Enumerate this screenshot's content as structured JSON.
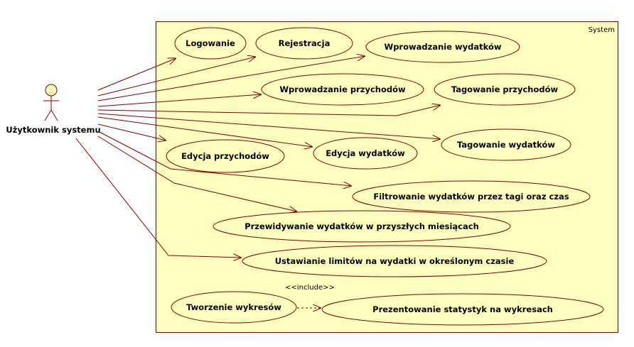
{
  "system": {
    "label": "System"
  },
  "actor": {
    "name": "Użytkownik systemu"
  },
  "use_cases": {
    "logowanie": "Logowanie",
    "rejestracja": "Rejestracja",
    "wprowadzanie_wydatkow": "Wprowadzanie wydatków",
    "wprowadzanie_przychodow": "Wprowadzanie przychodów",
    "tagowanie_przychodow": "Tagowanie przychodów",
    "edycja_przychodow": "Edycja przychodów",
    "edycja_wydatkow": "Edycja wydatków",
    "tagowanie_wydatkow": "Tagowanie wydatków",
    "filtrowanie": "Filtrowanie wydatków przez tagi oraz czas",
    "przewidywanie": "Przewidywanie wydatków w przyszłych miesiącach",
    "limity": "Ustawianie limitów na wydatki w określonym czasie",
    "tworzenie_wykresow": "Tworzenie wykresów",
    "prezentowanie": "Prezentowanie statystyk na wykresach"
  },
  "include": {
    "label": "<<include>>"
  },
  "colors": {
    "fill": "#ffffc0",
    "stroke": "#800000"
  }
}
